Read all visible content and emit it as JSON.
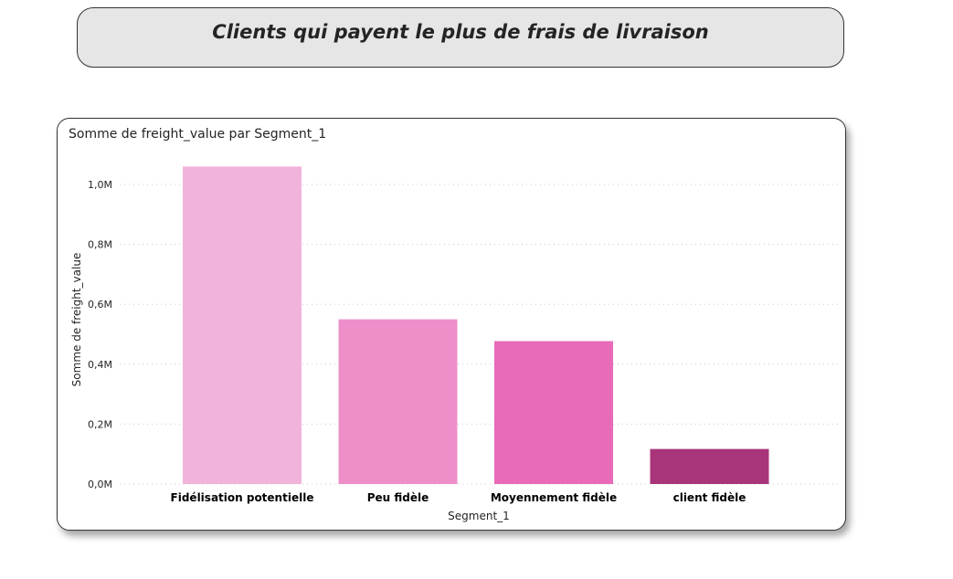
{
  "header": {
    "title": "Clients qui payent le plus de frais de livraison"
  },
  "chart_data": {
    "type": "bar",
    "title": "Somme de freight_value par Segment_1",
    "xlabel": "Segment_1",
    "ylabel": "Somme de freight_value",
    "categories": [
      "Fidélisation potentielle",
      "Peu fidèle",
      "Moyennement fidèle",
      "client fidèle"
    ],
    "values": [
      1.06,
      0.55,
      0.477,
      0.117
    ],
    "colors": [
      "#f2b3db",
      "#ee8fca",
      "#e86ab8",
      "#a8357a"
    ],
    "ylim": [
      0,
      1.0
    ],
    "yticks": [
      {
        "value": 0.0,
        "label": "0,0M"
      },
      {
        "value": 0.2,
        "label": "0,2M"
      },
      {
        "value": 0.4,
        "label": "0,4M"
      },
      {
        "value": 0.6,
        "label": "0,6M"
      },
      {
        "value": 0.8,
        "label": "0,8M"
      },
      {
        "value": 1.0,
        "label": "1,0M"
      }
    ],
    "grid": true,
    "legend": "none"
  }
}
